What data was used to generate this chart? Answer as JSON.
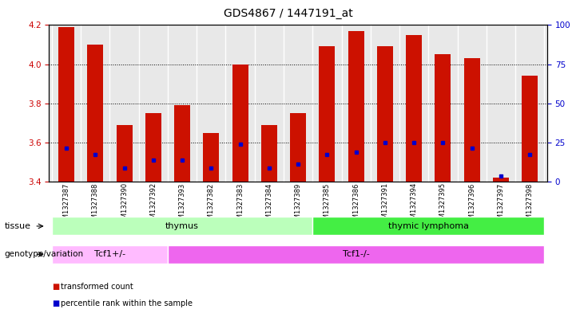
{
  "title": "GDS4867 / 1447191_at",
  "samples": [
    "GSM1327387",
    "GSM1327388",
    "GSM1327390",
    "GSM1327392",
    "GSM1327393",
    "GSM1327382",
    "GSM1327383",
    "GSM1327384",
    "GSM1327389",
    "GSM1327385",
    "GSM1327386",
    "GSM1327391",
    "GSM1327394",
    "GSM1327395",
    "GSM1327396",
    "GSM1327397",
    "GSM1327398"
  ],
  "bar_values": [
    4.19,
    4.1,
    3.69,
    3.75,
    3.79,
    3.65,
    4.0,
    3.69,
    3.75,
    4.09,
    4.17,
    4.09,
    4.15,
    4.05,
    4.03,
    3.42,
    3.94
  ],
  "percentile_values": [
    3.57,
    3.54,
    3.47,
    3.51,
    3.51,
    3.47,
    3.59,
    3.47,
    3.49,
    3.54,
    3.55,
    3.6,
    3.6,
    3.6,
    3.57,
    3.43,
    3.54
  ],
  "ymin": 3.4,
  "ymax": 4.2,
  "y2min": 0,
  "y2max": 100,
  "yticks": [
    3.4,
    3.6,
    3.8,
    4.0,
    4.2
  ],
  "y2ticks": [
    0,
    25,
    50,
    75,
    100
  ],
  "bar_color": "#cc1100",
  "percentile_color": "#0000cc",
  "bar_width": 0.55,
  "tissue_groups": [
    {
      "label": "thymus",
      "start": 0,
      "end": 9,
      "color": "#bbffbb"
    },
    {
      "label": "thymic lymphoma",
      "start": 9,
      "end": 17,
      "color": "#44ee44"
    }
  ],
  "genotype_groups": [
    {
      "label": "Tcf1+/-",
      "start": 0,
      "end": 4,
      "color": "#ffbbff"
    },
    {
      "label": "Tcf1-/-",
      "start": 4,
      "end": 17,
      "color": "#ee66ee"
    }
  ],
  "background_color": "#ffffff",
  "plot_bg_color": "#e8e8e8",
  "col_sep_color": "#ffffff",
  "ylabel_color": "#cc0000",
  "y2label_color": "#0000cc"
}
